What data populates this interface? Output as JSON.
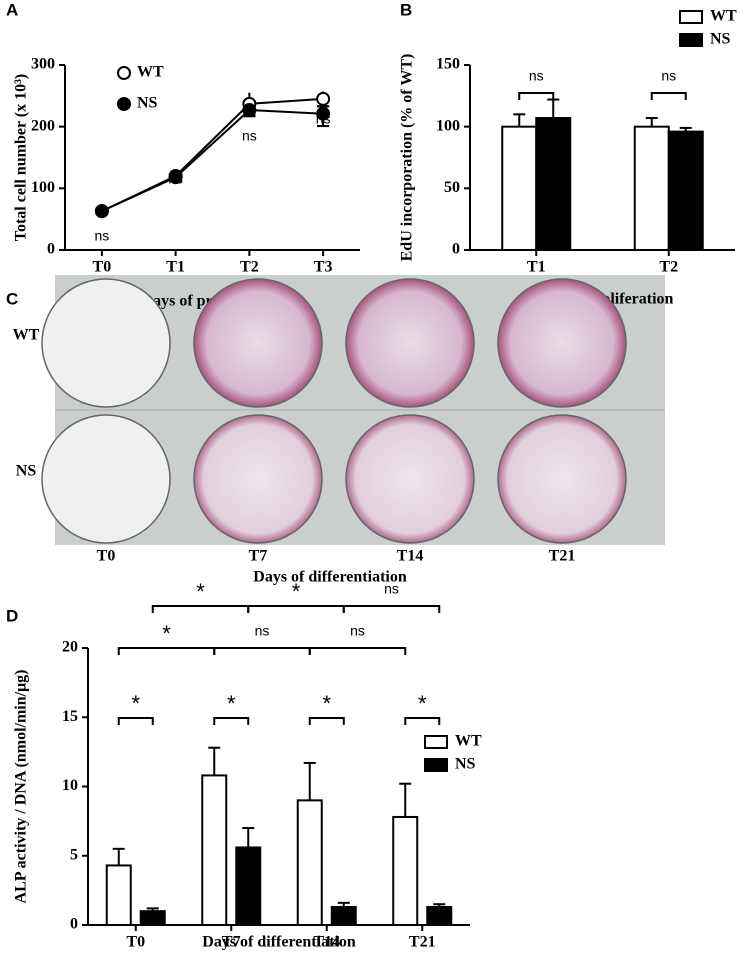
{
  "panels": [
    "A",
    "B",
    "C",
    "D"
  ],
  "chart_data": [
    {
      "type": "line",
      "xlabel": "Days of proliferation",
      "ylabel": "Total cell number (x 10³)",
      "categories": [
        "T0",
        "T1",
        "T2",
        "T3"
      ],
      "series": [
        {
          "name": "WT",
          "color": "#ffffff",
          "values": [
            63,
            120,
            237,
            245
          ],
          "errors": [
            3,
            4,
            18,
            12
          ]
        },
        {
          "name": "NS",
          "color": "#000000",
          "values": [
            63,
            118,
            227,
            221
          ],
          "errors": [
            3,
            4,
            10,
            20
          ]
        }
      ],
      "ylim": [
        0,
        300
      ],
      "yticks": [
        0,
        100,
        200,
        300
      ],
      "annotations": [
        "ns",
        "ns",
        "ns",
        "ns"
      ]
    },
    {
      "type": "bar",
      "xlabel": "Days of proliferation",
      "ylabel": "EdU incorporation (% of WT)",
      "categories": [
        "T1",
        "T2"
      ],
      "series": [
        {
          "name": "WT",
          "color": "#ffffff",
          "values": [
            100,
            100
          ],
          "errors": [
            10,
            7
          ]
        },
        {
          "name": "NS",
          "color": "#000000",
          "values": [
            107,
            96
          ],
          "errors": [
            15,
            3
          ]
        }
      ],
      "ylim": [
        0,
        150
      ],
      "yticks": [
        0,
        50,
        100,
        150
      ],
      "annotations": [
        "ns",
        "ns"
      ]
    },
    {
      "type": "image",
      "xlabel": "Days of differentiation",
      "rows": [
        "WT",
        "NS"
      ],
      "categories": [
        "T0",
        "T7",
        "T14",
        "T21"
      ]
    },
    {
      "type": "bar",
      "xlabel": "Days of differentiation",
      "ylabel": "ALP activity / DNA (nmol/min/μg)",
      "categories": [
        "T0",
        "T7",
        "T14",
        "T21"
      ],
      "series": [
        {
          "name": "WT",
          "color": "#ffffff",
          "values": [
            4.3,
            10.8,
            9.0,
            7.8
          ],
          "errors": [
            1.2,
            2.0,
            2.7,
            2.4
          ]
        },
        {
          "name": "NS",
          "color": "#000000",
          "values": [
            1.0,
            5.6,
            1.3,
            1.3
          ],
          "errors": [
            0.2,
            1.4,
            0.3,
            0.2
          ]
        }
      ],
      "ylim": [
        0,
        20
      ],
      "yticks": [
        0,
        5,
        10,
        15,
        20
      ],
      "annotations": [
        "*",
        "*",
        "ns",
        "*",
        "ns",
        "ns",
        "*",
        "*",
        "*",
        "*"
      ]
    }
  ]
}
